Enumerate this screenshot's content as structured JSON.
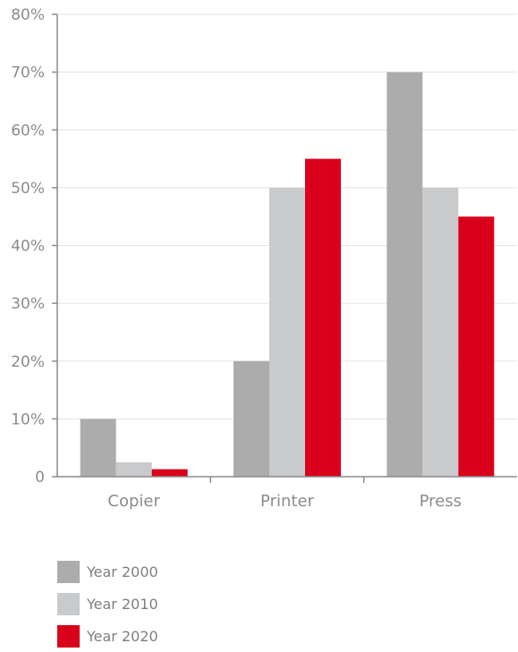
{
  "chart_data": {
    "type": "bar",
    "categories": [
      "Copier",
      "Printer",
      "Press"
    ],
    "series": [
      {
        "name": "Year 2000",
        "color": "#acacad",
        "values": [
          10,
          20,
          70
        ]
      },
      {
        "name": "Year 2010",
        "color": "#c9cacb",
        "values": [
          2.5,
          50,
          50
        ]
      },
      {
        "name": "Year 2020",
        "color": "#d9001b",
        "values": [
          1.3,
          55,
          45
        ]
      }
    ],
    "y_ticks": [
      "0",
      "10%",
      "20%",
      "30%",
      "40%",
      "50%",
      "60%",
      "70%",
      "80%"
    ],
    "ylim": [
      0,
      80
    ],
    "grid": true,
    "legend_position": "bottom-left",
    "title": "",
    "xlabel": "",
    "ylabel": ""
  }
}
